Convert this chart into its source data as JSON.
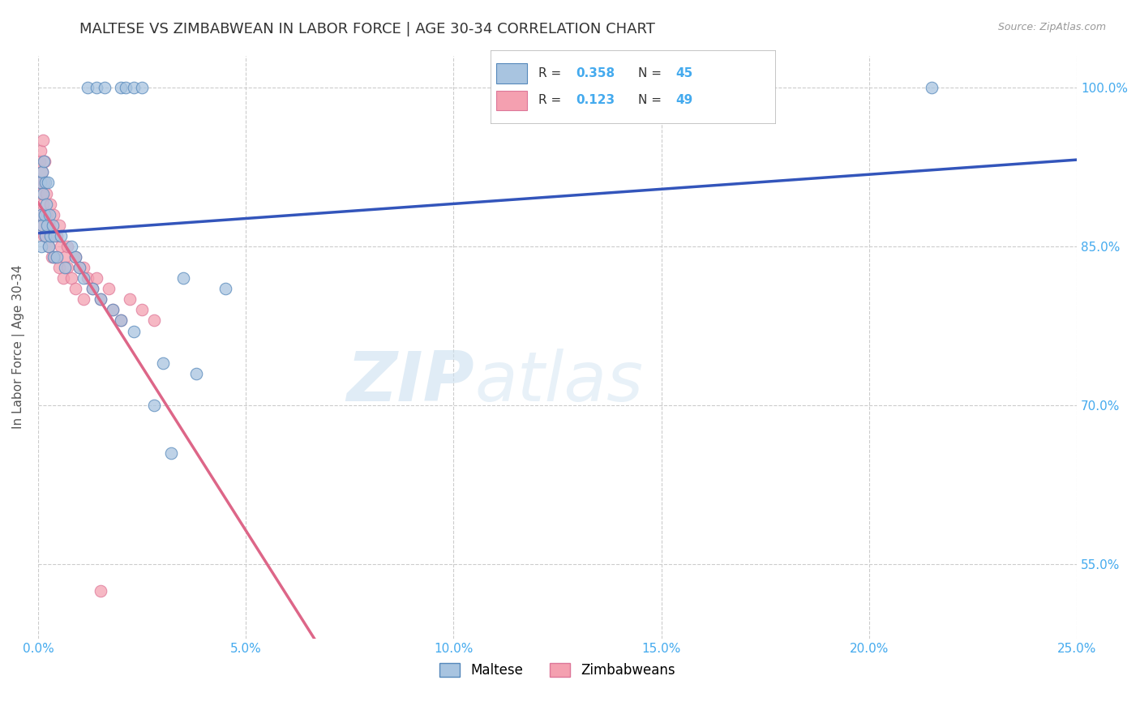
{
  "title": "MALTESE VS ZIMBABWEAN IN LABOR FORCE | AGE 30-34 CORRELATION CHART",
  "source_text": "Source: ZipAtlas.com",
  "ylabel": "In Labor Force | Age 30-34",
  "xlim": [
    0.0,
    25.0
  ],
  "ylim": [
    48.0,
    103.0
  ],
  "x_ticks": [
    0.0,
    5.0,
    10.0,
    15.0,
    20.0,
    25.0
  ],
  "x_tick_labels": [
    "0.0%",
    "5.0%",
    "10.0%",
    "15.0%",
    "20.0%",
    "25.0%"
  ],
  "y_ticks": [
    55.0,
    70.0,
    85.0,
    100.0
  ],
  "y_tick_labels": [
    "55.0%",
    "70.0%",
    "85.0%",
    "100.0%"
  ],
  "maltese_color": "#a8c4e0",
  "zimbabwean_color": "#f4a0b0",
  "maltese_edge": "#5588bb",
  "zimbabwean_edge": "#dd7799",
  "trend_blue": "#3355bb",
  "trend_pink": "#dd6688",
  "R_maltese": 0.358,
  "N_maltese": 45,
  "R_zimbabwean": 0.123,
  "N_zimbabwean": 49,
  "watermark_zip": "ZIP",
  "watermark_atlas": "atlas",
  "background_color": "#ffffff",
  "grid_color": "#cccccc",
  "title_color": "#333333",
  "axis_label_color": "#555555",
  "tick_label_color": "#44aaee"
}
